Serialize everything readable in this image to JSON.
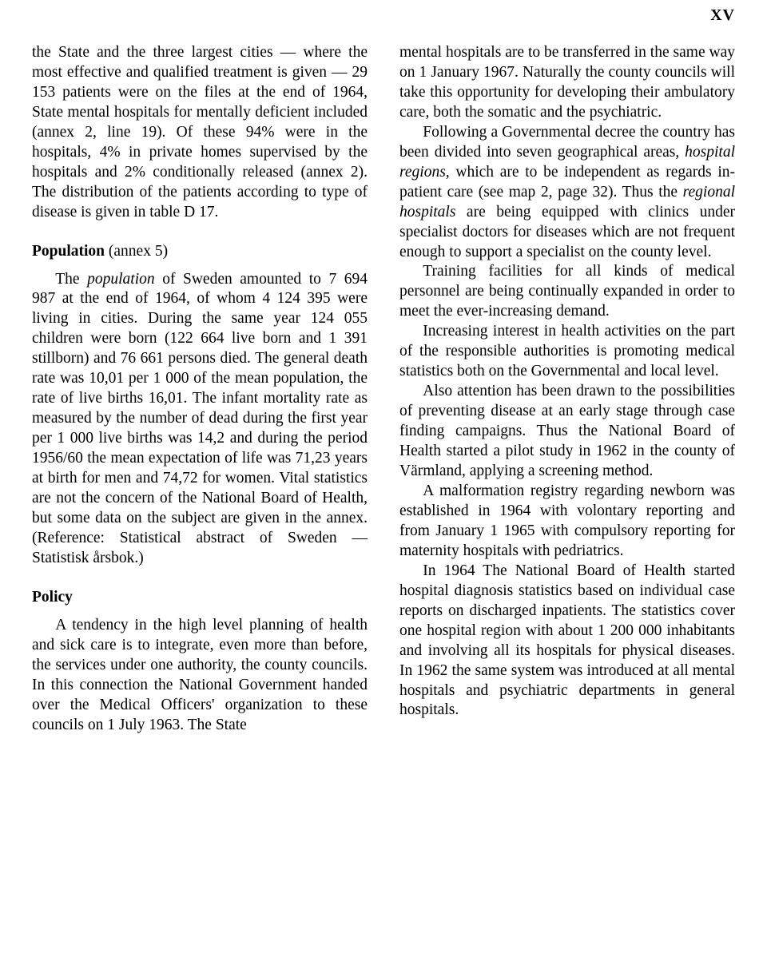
{
  "page_number": "XV",
  "left": {
    "p1": "the State and the three largest cities — where the most effective and qualified treatment is given — 29 153 patients were on the files at the end of 1964, State mental hospitals for mentally deficient included (annex 2, line 19). Of these 94% were in the hospitals, 4% in private homes supervised by the hospitals and 2% conditionally released (annex 2). The distribution of the patients according to type of disease is given in table D 17.",
    "h1": "Population",
    "h1_annex": " (annex 5)",
    "p2a": "The ",
    "p2_ital": "population",
    "p2b": " of Sweden amounted to 7 694 987 at the end of 1964, of whom 4 124 395 were living in cities. During the same year 124 055 children were born (122 664 live born and 1 391 stillborn) and 76 661 persons died. The general death rate was 10,01 per 1 000 of the mean population, the rate of live births 16,01. The infant mortality rate as measured by the number of dead during the first year per 1 000 live births was 14,2 and during the period 1956/60 the mean expectation of life was 71,23 years at birth for men and 74,72 for women. Vital statistics are not the concern of the National Board of Health, but some data on the subject are given in the annex. (Reference: Statistical abstract of Sweden — Statistisk årsbok.)",
    "h2": "Policy",
    "p3": "A tendency in the high level planning of health and sick care is to integrate, even more than before, the services under one authority, the county councils. In this connection the National Government handed over the Medical Officers' organization to these councils on 1 July 1963. The State"
  },
  "right": {
    "p1": "mental hospitals are to be transferred in the same way on 1 January 1967. Naturally the county councils will take this opportunity for developing their ambulatory care, both the somatic and the psychiatric.",
    "p2a": "Following a Governmental decree the country has been divided into seven geographical areas, ",
    "p2_ital1": "hospital regions,",
    "p2b": " which are to be independent as regards in-patient care (see map 2, page 32). Thus the ",
    "p2_ital2": "regional hospitals",
    "p2c": " are being equipped with clinics under specialist doctors for diseases which are not frequent enough to support a specialist on the county level.",
    "p3": "Training facilities for all kinds of medical personnel are being continually expanded in order to meet the ever-increasing demand.",
    "p4": "Increasing interest in health activities on the part of the responsible authorities is promoting medical statistics both on the Governmental and local level.",
    "p5": "Also attention has been drawn to the possibilities of preventing disease at an early stage through case finding campaigns. Thus the National Board of Health started a pilot study in 1962 in the county of Värmland, applying a screening method.",
    "p6": "A malformation registry regarding newborn was established in 1964 with volontary reporting and from January 1 1965 with compulsory reporting for maternity hospitals with pedriatrics.",
    "p7": "In 1964 The National Board of Health started hospital diagnosis statistics based on individual case reports on discharged inpatients. The statistics cover one hospital region with about 1 200 000 inhabitants and involving all its hospitals for physical diseases. In 1962 the same system was introduced at all mental hospitals and psychiatric departments in general hospitals."
  }
}
